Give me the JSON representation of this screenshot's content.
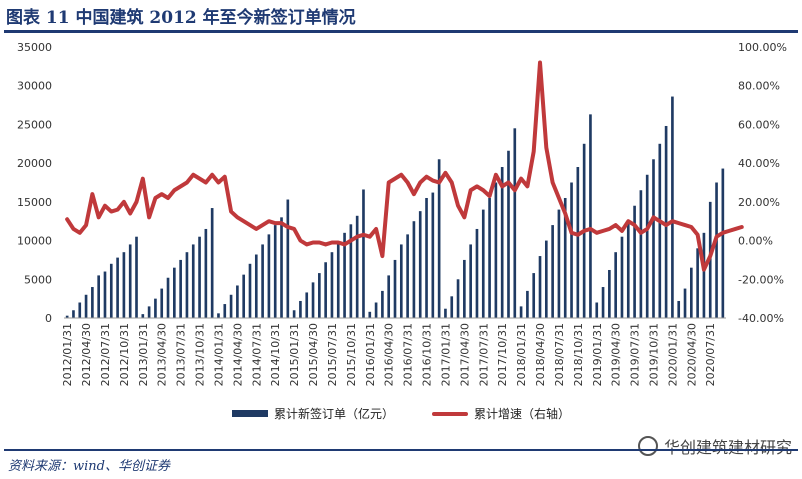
{
  "figure": {
    "title": "图表 11 中国建筑 2012 年至今新签订单情况",
    "source": "资料来源：wind、华创证券",
    "watermark": "华创建筑建材研究"
  },
  "colors": {
    "bars": "#1f3a63",
    "line": "#c0393b",
    "title": "#1f3a73"
  },
  "chart_data": {
    "type": "bar+line",
    "x_tick_labels": [
      "2012/01/31",
      "2012/04/30",
      "2012/07/31",
      "2012/10/31",
      "2013/01/31",
      "2013/04/30",
      "2013/07/31",
      "2013/10/31",
      "2014/01/31",
      "2014/04/30",
      "2014/07/31",
      "2014/10/31",
      "2015/01/31",
      "2015/04/30",
      "2015/07/31",
      "2015/10/31",
      "2016/01/31",
      "2016/04/30",
      "2016/07/31",
      "2016/10/31",
      "2017/01/31",
      "2017/04/30",
      "2017/07/31",
      "2017/10/31",
      "2018/01/31",
      "2018/04/30",
      "2018/07/31",
      "2018/10/31",
      "2019/01/31",
      "2019/04/30",
      "2019/07/31",
      "2019/10/31",
      "2020/01/31",
      "2020/04/30",
      "2020/07/31"
    ],
    "y_left": {
      "min": 0,
      "max": 35000,
      "ticks": [
        "0",
        "5000",
        "10000",
        "15000",
        "20000",
        "25000",
        "30000",
        "35000"
      ]
    },
    "y_right": {
      "min": -40,
      "max": 100,
      "ticks": [
        "-40.00%",
        "-20.00%",
        "0.00%",
        "20.00%",
        "40.00%",
        "60.00%",
        "80.00%",
        "100.00%"
      ]
    },
    "series": [
      {
        "name": "累计新签订单（亿元）",
        "type": "bar",
        "axis": "left",
        "start": "2012-01",
        "values": [
          300,
          1000,
          2000,
          3000,
          4000,
          5500,
          6000,
          7000,
          7800,
          8500,
          9500,
          10500,
          500,
          1500,
          2500,
          3800,
          5200,
          6500,
          7500,
          8500,
          9500,
          10500,
          11500,
          14200,
          600,
          1800,
          3000,
          4200,
          5600,
          7000,
          8200,
          9500,
          10800,
          12000,
          13000,
          15300,
          1000,
          2200,
          3300,
          4600,
          5800,
          7200,
          8500,
          9800,
          11000,
          12100,
          13200,
          16600,
          800,
          2000,
          3500,
          5500,
          7500,
          9500,
          10800,
          12500,
          13800,
          15500,
          16200,
          20500,
          1200,
          2800,
          5000,
          7500,
          9500,
          11500,
          14000,
          15500,
          17500,
          19500,
          21600,
          24500,
          1500,
          3500,
          5800,
          8000,
          10000,
          12000,
          14000,
          15500,
          17500,
          19500,
          22500,
          26300,
          2000,
          4000,
          6200,
          8500,
          10500,
          12500,
          14500,
          16500,
          18500,
          20500,
          22500,
          24800,
          28600,
          2200,
          3800,
          6500,
          9000,
          11000,
          15000,
          17500,
          19300
        ]
      },
      {
        "name": "累计增速（右轴）",
        "type": "line",
        "axis": "right",
        "start": "2012-01",
        "values": [
          11,
          6,
          4,
          8,
          24,
          12,
          18,
          15,
          16,
          20,
          14,
          20,
          32,
          12,
          22,
          24,
          22,
          26,
          28,
          30,
          34,
          32,
          30,
          34,
          30,
          33,
          15,
          12,
          10,
          8,
          6,
          8,
          10,
          9,
          9,
          7,
          6,
          0,
          -2,
          -1,
          -1,
          -2,
          -1,
          -1,
          -2,
          0,
          2,
          3,
          2,
          6,
          -8,
          30,
          32,
          34,
          30,
          24,
          30,
          33,
          31,
          30,
          35,
          30,
          18,
          12,
          26,
          28,
          26,
          23,
          34,
          28,
          30,
          26,
          32,
          28,
          46,
          92,
          48,
          30,
          22,
          14,
          4,
          3,
          5,
          6,
          4,
          5,
          6,
          8,
          5,
          10,
          8,
          4,
          6,
          12,
          10,
          8,
          10,
          9,
          8,
          7,
          3,
          -15,
          -8,
          2,
          4,
          5,
          6,
          7
        ]
      }
    ],
    "legend_position": "bottom",
    "grid": false
  }
}
